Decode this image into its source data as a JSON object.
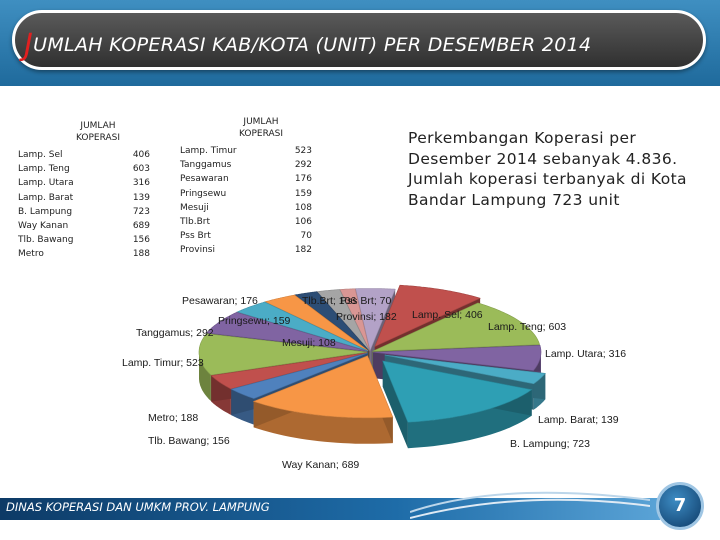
{
  "header": {
    "title_first": "J",
    "title_rest": "UMLAH KOPERASI KAB/KOTA (UNIT) PER DESEMBER 2014"
  },
  "table_left": {
    "header_line1": "JUMLAH",
    "header_line2": "KOPERASI",
    "rows": [
      {
        "name": "Lamp. Sel",
        "value": "406"
      },
      {
        "name": "Lamp. Teng",
        "value": "603"
      },
      {
        "name": "Lamp. Utara",
        "value": "316"
      },
      {
        "name": "Lamp. Barat",
        "value": "139"
      },
      {
        "name": "B. Lampung",
        "value": "723"
      },
      {
        "name": "Way Kanan",
        "value": "689"
      },
      {
        "name": "Tlb. Bawang",
        "value": "156"
      },
      {
        "name": "Metro",
        "value": "188"
      }
    ]
  },
  "table_right": {
    "header_line1": "JUMLAH",
    "header_line2": "KOPERASI",
    "rows": [
      {
        "name": "Lamp. Timur",
        "value": "523"
      },
      {
        "name": "Tanggamus",
        "value": "292"
      },
      {
        "name": "Pesawaran",
        "value": "176"
      },
      {
        "name": "Pringsewu",
        "value": "159"
      },
      {
        "name": "Mesuji",
        "value": "108"
      },
      {
        "name": "Tlb.Brt",
        "value": "106"
      },
      {
        "name": "Pss Brt",
        "value": "70"
      },
      {
        "name": "Provinsi",
        "value": "182"
      }
    ]
  },
  "description": "Perkembangan Koperasi per Desember 2014 sebanyak 4.836. Jumlah koperasi terbanyak di Kota Bandar  Lampung 723 unit",
  "footer": {
    "org": "DINAS KOPERASI  DAN UMKM PROV. LAMPUNG",
    "page": "7"
  },
  "chart_data": {
    "type": "pie",
    "style": "3d-exploded",
    "slices": [
      {
        "name": "Lamp. Sel",
        "value": 406,
        "label": "Lamp. Sel; 406",
        "color": "#c0504d"
      },
      {
        "name": "Lamp. Teng",
        "value": 603,
        "label": "Lamp. Teng; 603",
        "color": "#9bbb59"
      },
      {
        "name": "Lamp. Utara",
        "value": 316,
        "label": "Lamp. Utara; 316",
        "color": "#8064a2"
      },
      {
        "name": "Lamp. Barat",
        "value": 139,
        "label": "Lamp. Barat; 139",
        "color": "#4bacc6"
      },
      {
        "name": "B. Lampung",
        "value": 723,
        "label": "B. Lampung; 723",
        "color": "#2e9fb4"
      },
      {
        "name": "Way Kanan",
        "value": 689,
        "label": "Way Kanan; 689",
        "color": "#f79646"
      },
      {
        "name": "Tlb. Bawang",
        "value": 156,
        "label": "Tlb. Bawang; 156",
        "color": "#4f81bd"
      },
      {
        "name": "Metro",
        "value": 188,
        "label": "Metro; 188",
        "color": "#c0504d"
      },
      {
        "name": "Lamp. Timur",
        "value": 523,
        "label": "Lamp. Timur; 523",
        "color": "#9bbb59"
      },
      {
        "name": "Tanggamus",
        "value": 292,
        "label": "Tanggamus; 292",
        "color": "#8064a2"
      },
      {
        "name": "Pesawaran",
        "value": 176,
        "label": "Pesawaran; 176",
        "color": "#4bacc6"
      },
      {
        "name": "Pringsewu",
        "value": 159,
        "label": "Pringsewu; 159",
        "color": "#f79646"
      },
      {
        "name": "Mesuji",
        "value": 108,
        "label": "Mesuji; 108",
        "color": "#2c4d75"
      },
      {
        "name": "Tlb.Brt",
        "value": 106,
        "label": "Tlb.Brt;  106",
        "color": "#a5a5a5"
      },
      {
        "name": "Pss Brt",
        "value": 70,
        "label": "Pss Brt; 70",
        "color": "#d99694"
      },
      {
        "name": "Provinsi",
        "value": 182,
        "label": "Provinsi; 182",
        "color": "#b3a2c7"
      }
    ]
  }
}
